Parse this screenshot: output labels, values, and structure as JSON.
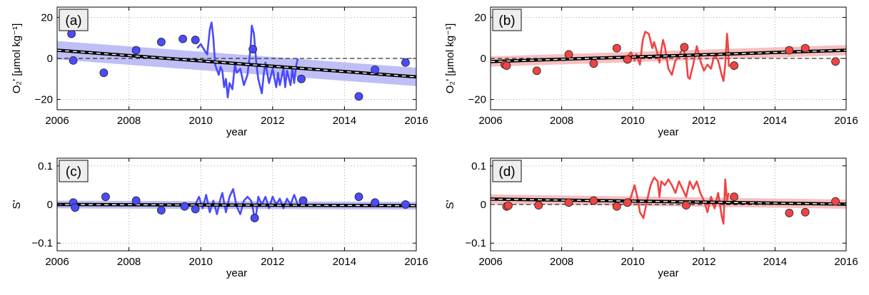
{
  "chart_data": [
    {
      "panel": "(a)",
      "type": "scatter",
      "xlabel": "year",
      "ylabel": "O₂' [μmol kg⁻¹]",
      "xlim": [
        2006,
        2016
      ],
      "ylim": [
        -25,
        25
      ],
      "xticks": [
        2006,
        2008,
        2010,
        2012,
        2014,
        2016
      ],
      "yticks": [
        -20,
        0,
        20
      ],
      "grid": true,
      "color": "#4a4aff",
      "band_color": "#b4b4f5",
      "points": [
        [
          2006.4,
          12
        ],
        [
          2006.45,
          -1
        ],
        [
          2007.3,
          -7
        ],
        [
          2008.2,
          4
        ],
        [
          2008.9,
          8
        ],
        [
          2009.5,
          9.5
        ],
        [
          2009.85,
          9
        ],
        [
          2011.45,
          4.5
        ],
        [
          2012.8,
          -10
        ],
        [
          2014.4,
          -18.5
        ],
        [
          2014.85,
          -5.5
        ],
        [
          2015.7,
          -2
        ]
      ],
      "timeseries": [
        [
          2009.9,
          5
        ],
        [
          2010.0,
          7
        ],
        [
          2010.1,
          4
        ],
        [
          2010.18,
          2
        ],
        [
          2010.25,
          14
        ],
        [
          2010.3,
          17.5
        ],
        [
          2010.35,
          10
        ],
        [
          2010.4,
          -3
        ],
        [
          2010.5,
          -8
        ],
        [
          2010.55,
          -4
        ],
        [
          2010.6,
          -6
        ],
        [
          2010.65,
          -14
        ],
        [
          2010.7,
          -10
        ],
        [
          2010.75,
          -19
        ],
        [
          2010.8,
          -12
        ],
        [
          2010.88,
          -15
        ],
        [
          2010.95,
          -3
        ],
        [
          2011.0,
          -7
        ],
        [
          2011.1,
          -5
        ],
        [
          2011.2,
          -13
        ],
        [
          2011.3,
          -8
        ],
        [
          2011.38,
          4
        ],
        [
          2011.42,
          16
        ],
        [
          2011.48,
          12
        ],
        [
          2011.55,
          -3
        ],
        [
          2011.6,
          -10
        ],
        [
          2011.7,
          -17
        ],
        [
          2011.75,
          -8
        ],
        [
          2011.8,
          -2
        ],
        [
          2011.9,
          -12
        ],
        [
          2012.0,
          -5
        ],
        [
          2012.1,
          -14
        ],
        [
          2012.15,
          -7
        ],
        [
          2012.2,
          -13
        ],
        [
          2012.3,
          -5
        ],
        [
          2012.35,
          -14
        ],
        [
          2012.4,
          -6
        ],
        [
          2012.5,
          -13
        ],
        [
          2012.55,
          -5
        ],
        [
          2012.6,
          -12
        ],
        [
          2012.65,
          -4
        ],
        [
          2012.7,
          0
        ]
      ],
      "trend": [
        [
          2006,
          4
        ],
        [
          2016,
          -9
        ]
      ],
      "band_half_width": [
        4.5,
        4.5
      ]
    },
    {
      "panel": "(b)",
      "type": "scatter",
      "xlabel": "year",
      "ylabel": "O₂' [μmol kg⁻¹]",
      "xlim": [
        2006,
        2016
      ],
      "ylim": [
        -25,
        25
      ],
      "xticks": [
        2006,
        2008,
        2010,
        2012,
        2014,
        2016
      ],
      "yticks": [
        -20,
        0,
        20
      ],
      "grid": true,
      "color": "#f04444",
      "band_color": "#f5b4b4",
      "points": [
        [
          2006.4,
          -3
        ],
        [
          2006.45,
          -3.5
        ],
        [
          2007.3,
          -6
        ],
        [
          2008.2,
          2
        ],
        [
          2008.9,
          -2.5
        ],
        [
          2009.55,
          5
        ],
        [
          2009.85,
          -0.5
        ],
        [
          2011.45,
          5.5
        ],
        [
          2012.85,
          -3.5
        ],
        [
          2014.4,
          4
        ],
        [
          2014.85,
          5
        ],
        [
          2015.7,
          -1.5
        ]
      ],
      "timeseries": [
        [
          2009.85,
          1
        ],
        [
          2009.95,
          3
        ],
        [
          2010.05,
          -1
        ],
        [
          2010.1,
          2
        ],
        [
          2010.2,
          -3
        ],
        [
          2010.28,
          9
        ],
        [
          2010.35,
          13
        ],
        [
          2010.45,
          12
        ],
        [
          2010.55,
          5
        ],
        [
          2010.6,
          8
        ],
        [
          2010.7,
          2
        ],
        [
          2010.75,
          -2
        ],
        [
          2010.8,
          4
        ],
        [
          2010.85,
          9
        ],
        [
          2010.9,
          6
        ],
        [
          2011.0,
          -5
        ],
        [
          2011.1,
          -8
        ],
        [
          2011.2,
          -1
        ],
        [
          2011.3,
          1
        ],
        [
          2011.4,
          5
        ],
        [
          2011.5,
          1
        ],
        [
          2011.55,
          -9
        ],
        [
          2011.6,
          -10
        ],
        [
          2011.7,
          -3
        ],
        [
          2011.8,
          6
        ],
        [
          2011.9,
          -1
        ],
        [
          2012.0,
          -6
        ],
        [
          2012.1,
          -3
        ],
        [
          2012.2,
          -5
        ],
        [
          2012.3,
          2
        ],
        [
          2012.4,
          -1
        ],
        [
          2012.5,
          -8
        ],
        [
          2012.55,
          -11
        ],
        [
          2012.6,
          -3
        ],
        [
          2012.65,
          12
        ],
        [
          2012.68,
          6
        ],
        [
          2012.7,
          -4
        ]
      ],
      "trend": [
        [
          2006,
          -1.5
        ],
        [
          2016,
          4
        ]
      ],
      "band_half_width": [
        2.5,
        2.5
      ]
    },
    {
      "panel": "(c)",
      "type": "scatter",
      "xlabel": "year",
      "ylabel": "S'",
      "xlim": [
        2006,
        2016
      ],
      "ylim": [
        -0.12,
        0.12
      ],
      "xticks": [
        2006,
        2008,
        2010,
        2012,
        2014,
        2016
      ],
      "yticks": [
        -0.1,
        0,
        0.1
      ],
      "ytick_labels": [
        "−0.1",
        "0",
        "0.1"
      ],
      "grid": true,
      "color": "#4a4aff",
      "band_color": "#b4b4f5",
      "points": [
        [
          2006.45,
          0.005
        ],
        [
          2006.5,
          -0.008
        ],
        [
          2007.35,
          0.02
        ],
        [
          2008.2,
          0.01
        ],
        [
          2008.9,
          -0.015
        ],
        [
          2009.55,
          -0.005
        ],
        [
          2009.85,
          -0.012
        ],
        [
          2011.5,
          -0.035
        ],
        [
          2012.85,
          0.01
        ],
        [
          2014.4,
          0.02
        ],
        [
          2014.85,
          0.005
        ],
        [
          2015.7,
          0.0
        ]
      ],
      "timeseries": [
        [
          2009.85,
          0.0
        ],
        [
          2009.95,
          0.02
        ],
        [
          2010.05,
          -0.01
        ],
        [
          2010.15,
          0.025
        ],
        [
          2010.25,
          -0.02
        ],
        [
          2010.35,
          0.01
        ],
        [
          2010.45,
          -0.025
        ],
        [
          2010.55,
          0.015
        ],
        [
          2010.6,
          0.03
        ],
        [
          2010.7,
          -0.02
        ],
        [
          2010.8,
          0.02
        ],
        [
          2010.9,
          0.04
        ],
        [
          2011.0,
          -0.005
        ],
        [
          2011.1,
          -0.025
        ],
        [
          2011.2,
          0.01
        ],
        [
          2011.3,
          0.02
        ],
        [
          2011.4,
          0.01
        ],
        [
          2011.45,
          -0.01
        ],
        [
          2011.5,
          -0.04
        ],
        [
          2011.55,
          -0.02
        ],
        [
          2011.6,
          0.02
        ],
        [
          2011.7,
          0.0
        ],
        [
          2011.8,
          0.02
        ],
        [
          2011.9,
          -0.01
        ],
        [
          2012.0,
          0.02
        ],
        [
          2012.1,
          0.0
        ],
        [
          2012.2,
          0.015
        ],
        [
          2012.3,
          -0.01
        ],
        [
          2012.4,
          0.015
        ],
        [
          2012.5,
          0.0
        ],
        [
          2012.6,
          0.025
        ],
        [
          2012.7,
          0.0
        ]
      ],
      "trend": [
        [
          2006,
          0.0
        ],
        [
          2016,
          -0.003
        ]
      ],
      "band_half_width": [
        0.01,
        0.01
      ]
    },
    {
      "panel": "(d)",
      "type": "scatter",
      "xlabel": "year",
      "ylabel": "S'",
      "xlim": [
        2006,
        2016
      ],
      "ylim": [
        -0.12,
        0.12
      ],
      "xticks": [
        2006,
        2008,
        2010,
        2012,
        2014,
        2016
      ],
      "yticks": [
        -0.1,
        0,
        0.1
      ],
      "ytick_labels": [
        "−0.1",
        "0",
        "0.1"
      ],
      "grid": true,
      "color": "#f04444",
      "band_color": "#f5b4b4",
      "points": [
        [
          2006.45,
          -0.005
        ],
        [
          2006.5,
          -0.003
        ],
        [
          2007.35,
          -0.002
        ],
        [
          2008.2,
          0.005
        ],
        [
          2008.9,
          0.01
        ],
        [
          2009.55,
          -0.005
        ],
        [
          2009.85,
          0.005
        ],
        [
          2011.5,
          -0.002
        ],
        [
          2012.85,
          0.02
        ],
        [
          2014.4,
          -0.022
        ],
        [
          2014.85,
          -0.02
        ],
        [
          2015.7,
          0.008
        ]
      ],
      "timeseries": [
        [
          2009.85,
          0.0
        ],
        [
          2009.95,
          0.02
        ],
        [
          2010.05,
          0.05
        ],
        [
          2010.1,
          0.03
        ],
        [
          2010.15,
          0.01
        ],
        [
          2010.2,
          -0.02
        ],
        [
          2010.3,
          -0.035
        ],
        [
          2010.4,
          0.01
        ],
        [
          2010.5,
          0.05
        ],
        [
          2010.6,
          0.07
        ],
        [
          2010.7,
          0.06
        ],
        [
          2010.75,
          0.02
        ],
        [
          2010.8,
          0.06
        ],
        [
          2010.9,
          0.05
        ],
        [
          2011.0,
          0.065
        ],
        [
          2011.1,
          0.05
        ],
        [
          2011.2,
          0.03
        ],
        [
          2011.3,
          0.06
        ],
        [
          2011.4,
          0.04
        ],
        [
          2011.5,
          0.02
        ],
        [
          2011.6,
          0.06
        ],
        [
          2011.7,
          0.04
        ],
        [
          2011.8,
          0.06
        ],
        [
          2011.9,
          0.03
        ],
        [
          2012.0,
          0.01
        ],
        [
          2012.1,
          -0.02
        ],
        [
          2012.2,
          0.02
        ],
        [
          2012.3,
          -0.01
        ],
        [
          2012.4,
          0.03
        ],
        [
          2012.5,
          -0.03
        ],
        [
          2012.55,
          -0.05
        ],
        [
          2012.6,
          0.065
        ],
        [
          2012.65,
          0.01
        ],
        [
          2012.7,
          0.03
        ]
      ],
      "trend": [
        [
          2006,
          0.014
        ],
        [
          2016,
          0.001
        ]
      ],
      "band_half_width": [
        0.012,
        0.012
      ]
    }
  ]
}
